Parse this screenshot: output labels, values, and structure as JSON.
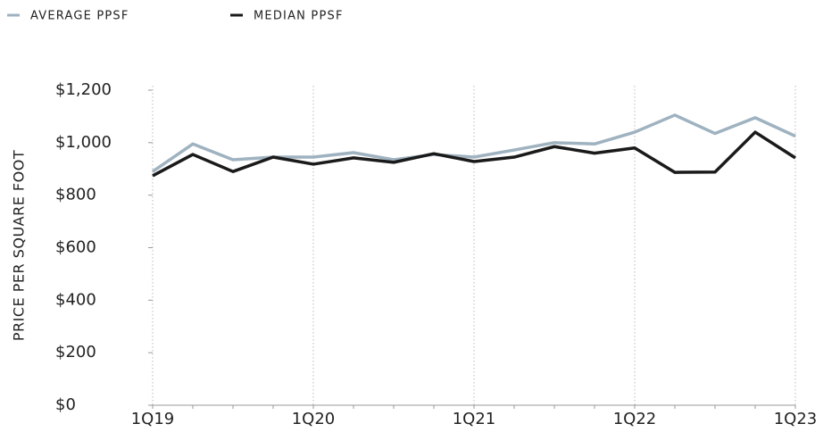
{
  "chart_data": {
    "type": "line",
    "y_label": "PRICE PER SQUARE FOOT",
    "categories": [
      "1Q19",
      null,
      null,
      null,
      "1Q20",
      null,
      null,
      null,
      "1Q21",
      null,
      null,
      null,
      "1Q22",
      null,
      null,
      null,
      "1Q23"
    ],
    "series": [
      {
        "name": "AVERAGE PPSF",
        "color": "#9fb2c0",
        "values": [
          890,
          995,
          935,
          945,
          945,
          962,
          935,
          955,
          945,
          972,
          1000,
          995,
          1040,
          1105,
          1035,
          1095,
          1025
        ]
      },
      {
        "name": "MEDIAN PPSF",
        "color": "#1a1a1a",
        "values": [
          874,
          955,
          890,
          945,
          918,
          942,
          925,
          958,
          928,
          945,
          985,
          960,
          980,
          887,
          888,
          1040,
          942
        ]
      }
    ],
    "ylim": [
      0,
      1200
    ],
    "yticks": [
      {
        "value": 0,
        "label": "$0"
      },
      {
        "value": 200,
        "label": "$200"
      },
      {
        "value": 400,
        "label": "$400"
      },
      {
        "value": 600,
        "label": "$600"
      },
      {
        "value": 800,
        "label": "$800"
      },
      {
        "value": 1000,
        "label": "$1,000"
      },
      {
        "value": 1200,
        "label": "$1,200"
      }
    ],
    "legend": "top-left",
    "grid": true
  }
}
